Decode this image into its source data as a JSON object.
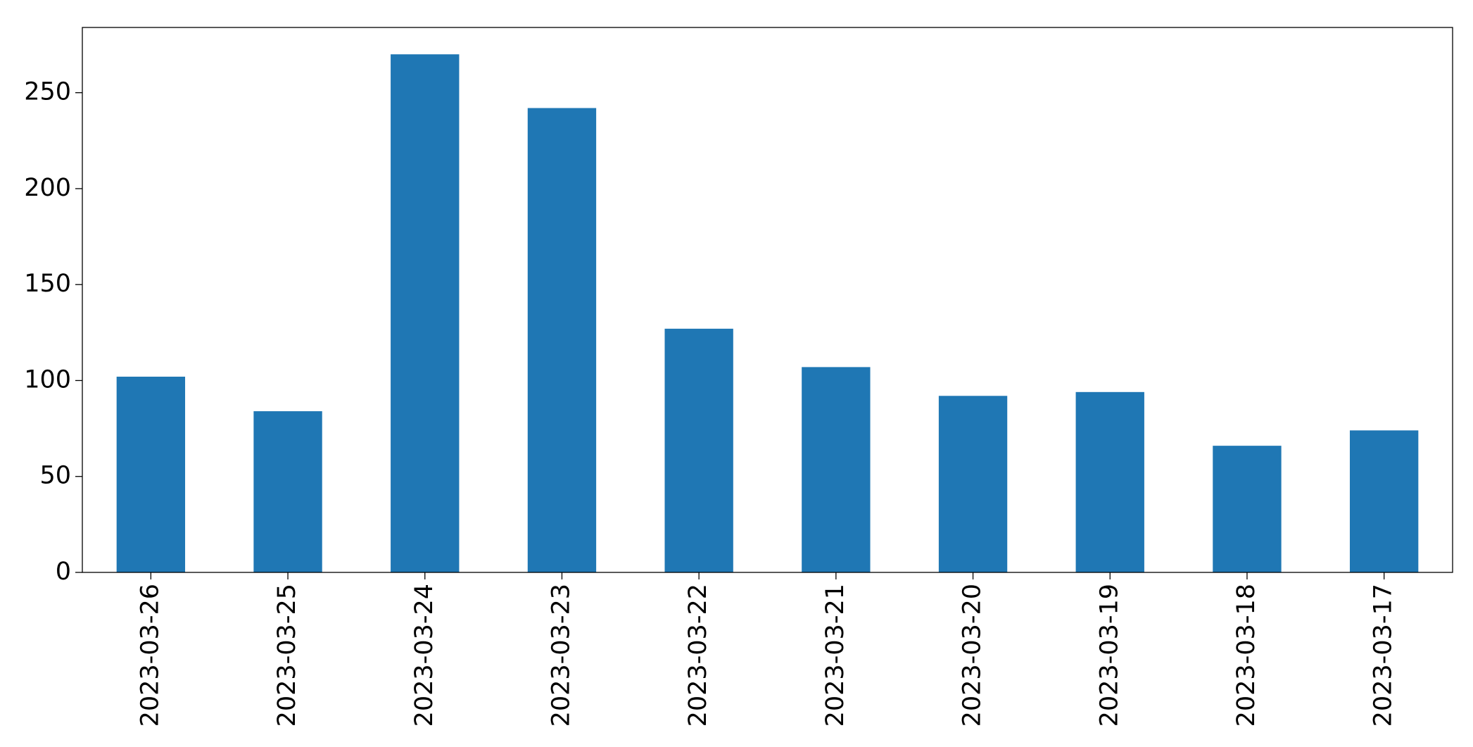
{
  "chart_data": {
    "type": "bar",
    "categories": [
      "2023-03-26",
      "2023-03-25",
      "2023-03-24",
      "2023-03-23",
      "2023-03-22",
      "2023-03-21",
      "2023-03-20",
      "2023-03-19",
      "2023-03-18",
      "2023-03-17"
    ],
    "values": [
      102,
      84,
      270,
      242,
      127,
      107,
      92,
      94,
      66,
      74
    ],
    "color": "#1f77b4",
    "ylim": [
      0,
      284
    ],
    "yticks": [
      0,
      50,
      100,
      150,
      200,
      250
    ],
    "grid": false
  }
}
